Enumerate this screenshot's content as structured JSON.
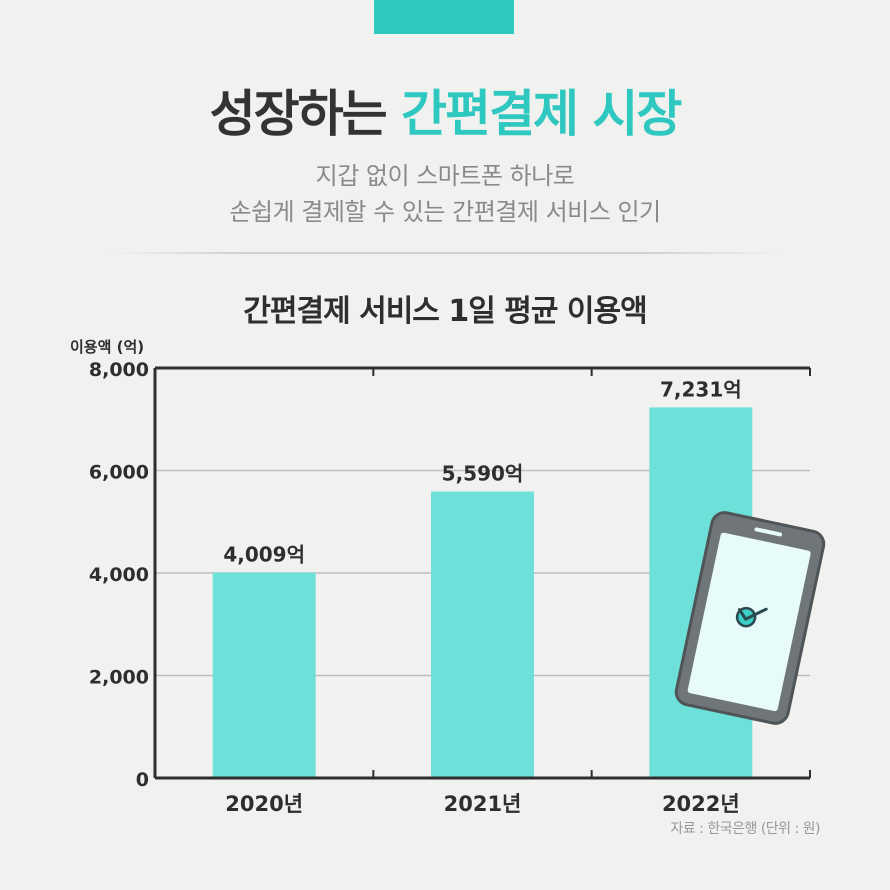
{
  "header": {
    "title_part1": "성장하는",
    "title_part2": "간편결제 시장",
    "subtitle_line1": "지갑 없이 스마트폰 하나로",
    "subtitle_line2": "손쉽게 결제할 수 있는 간편결제 서비스 인기"
  },
  "source": "자료 : 한국은행 (단위 : 원)",
  "colors": {
    "accent": "#2fc8c0",
    "bar": "#6ee0da",
    "text_dark": "#2e2e2e",
    "subtitle": "#8a8a8a",
    "grid": "#bdbdbd",
    "phone_body": "#6f7578",
    "phone_screen": "#e8fbfb"
  },
  "illustration": {
    "icon": "smartphone-check-icon"
  },
  "chart_data": {
    "type": "bar",
    "title": "간편결제 서비스 1일 평균 이용액",
    "ylabel": "이용액 (억)",
    "xlabel": "",
    "categories": [
      "2020년",
      "2021년",
      "2022년"
    ],
    "values": [
      4009,
      5590,
      7231
    ],
    "data_labels": [
      "4,009억",
      "5,590억",
      "7,231억"
    ],
    "yticks": [
      0,
      2000,
      4000,
      6000,
      8000
    ],
    "ytick_labels": [
      "0",
      "2,000",
      "4,000",
      "6,000",
      "8,000"
    ],
    "ylim": [
      0,
      8000
    ],
    "grid": true,
    "legend": "none"
  }
}
